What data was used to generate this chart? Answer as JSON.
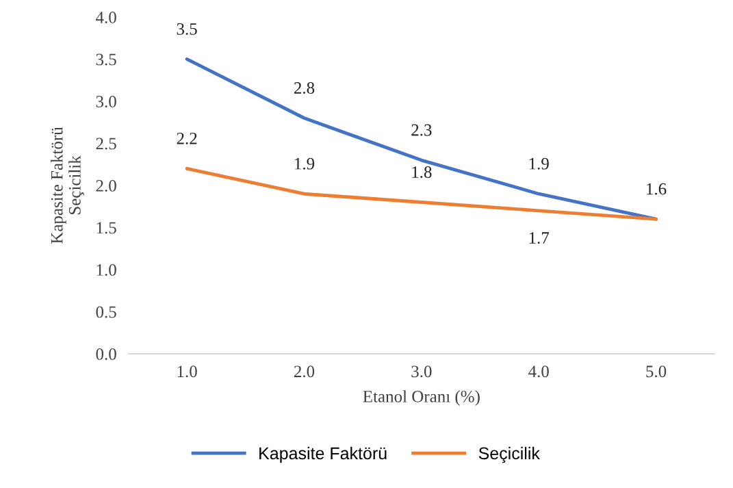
{
  "chart_data": {
    "type": "line",
    "xlabel": "Etanol Oranı (%)",
    "ylabel": "Kapasite Faktörü\nSeçicilik",
    "categories": [
      "1.0",
      "2.0",
      "3.0",
      "4.0",
      "5.0"
    ],
    "series": [
      {
        "name": "Kapasite Faktörü",
        "color": "#4472c4",
        "values": [
          3.5,
          2.8,
          2.3,
          1.9,
          1.6
        ],
        "value_labels": [
          "3.5",
          "2.8",
          "2.3",
          "1.9",
          "1.6"
        ]
      },
      {
        "name": "Seçicilik",
        "color": "#ed7d31",
        "values": [
          2.2,
          1.9,
          1.8,
          1.7,
          1.6
        ],
        "value_labels": [
          "2.2",
          "1.9",
          "1.8",
          "1.7",
          null
        ]
      }
    ],
    "ylim": [
      0,
      4.0
    ],
    "yticks": [
      {
        "value": 0,
        "label": "0.0"
      },
      {
        "value": 0.5,
        "label": "0.5"
      },
      {
        "value": 1.0,
        "label": "1.0"
      },
      {
        "value": 1.5,
        "label": "1.5"
      },
      {
        "value": 2.0,
        "label": "2.0"
      },
      {
        "value": 2.5,
        "label": "2.5"
      },
      {
        "value": 3.0,
        "label": "3.0"
      },
      {
        "value": 3.5,
        "label": "3.5"
      },
      {
        "value": 4.0,
        "label": "4.0"
      }
    ],
    "grid": false,
    "legend": "bottom",
    "marker": "none",
    "line_style": "solid"
  }
}
